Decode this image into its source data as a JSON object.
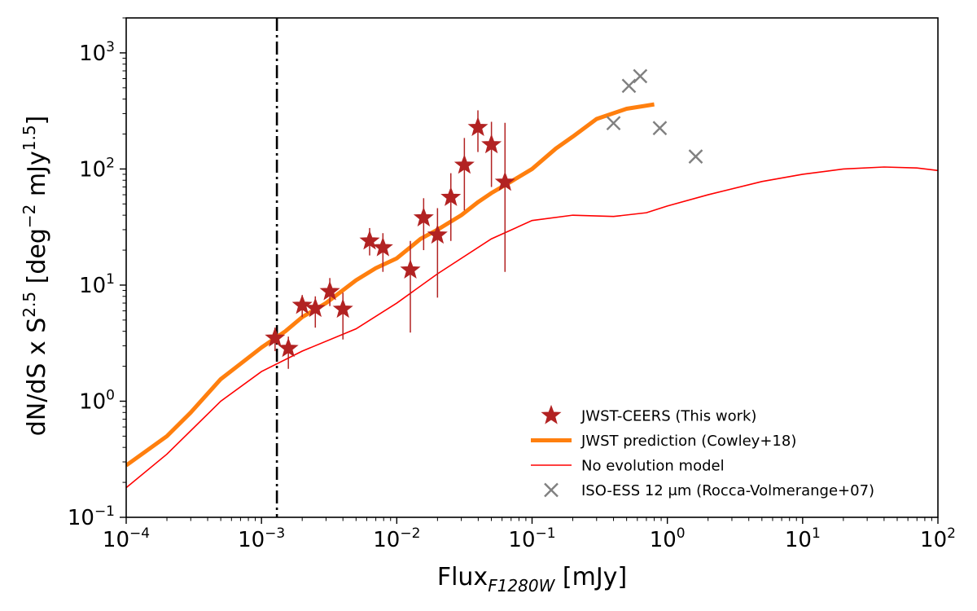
{
  "chart_data": {
    "type": "scatter",
    "xscale": "log",
    "yscale": "log",
    "xlim": [
      0.0001,
      100
    ],
    "ylim": [
      0.1,
      2000
    ],
    "xlabel": "Flux",
    "xlabel_sub": "F1280W",
    "xlabel_unit": "[mJy]",
    "ylabel": "dN/dS x S",
    "ylabel_sup": "2.5",
    "ylabel_unit_pre": "[deg",
    "ylabel_unit_sup1": "−2",
    "ylabel_unit_mid": " mJy",
    "ylabel_unit_sup2": "1.5",
    "ylabel_unit_post": "]",
    "x_ticks": [
      {
        "value": 0.0001,
        "base": "10",
        "exp": "−4"
      },
      {
        "value": 0.001,
        "base": "10",
        "exp": "−3"
      },
      {
        "value": 0.01,
        "base": "10",
        "exp": "−2"
      },
      {
        "value": 0.1,
        "base": "10",
        "exp": "−1"
      },
      {
        "value": 1,
        "base": "10",
        "exp": "0"
      },
      {
        "value": 10,
        "base": "10",
        "exp": "1"
      },
      {
        "value": 100,
        "base": "10",
        "exp": "2"
      }
    ],
    "y_ticks": [
      {
        "value": 0.1,
        "base": "10",
        "exp": "−1"
      },
      {
        "value": 1,
        "base": "10",
        "exp": "0"
      },
      {
        "value": 10,
        "base": "10",
        "exp": "1"
      },
      {
        "value": 100,
        "base": "10",
        "exp": "2"
      },
      {
        "value": 1000,
        "base": "10",
        "exp": "3"
      }
    ],
    "vline": {
      "x": 0.0013,
      "style": "dash-dot",
      "color": "#000000"
    },
    "legend_position": "lower-right",
    "grid": false,
    "series": [
      {
        "name": "JWST-CEERS (This work)",
        "kind": "errorbar-stars",
        "color": "#b22222",
        "points": [
          {
            "x": 0.00126,
            "y": 3.5,
            "ylo": 2.7,
            "yhi": 4.3
          },
          {
            "x": 0.00158,
            "y": 2.85,
            "ylo": 1.9,
            "yhi": 3.6
          },
          {
            "x": 0.002,
            "y": 6.7,
            "ylo": 5.3,
            "yhi": 8.2
          },
          {
            "x": 0.0025,
            "y": 6.3,
            "ylo": 4.3,
            "yhi": 8.0
          },
          {
            "x": 0.0032,
            "y": 8.8,
            "ylo": 6.6,
            "yhi": 11.5
          },
          {
            "x": 0.004,
            "y": 6.2,
            "ylo": 3.4,
            "yhi": 8.6
          },
          {
            "x": 0.0063,
            "y": 24,
            "ylo": 18,
            "yhi": 31
          },
          {
            "x": 0.0079,
            "y": 21,
            "ylo": 13,
            "yhi": 28
          },
          {
            "x": 0.0126,
            "y": 13.5,
            "ylo": 3.9,
            "yhi": 24
          },
          {
            "x": 0.0158,
            "y": 38,
            "ylo": 20,
            "yhi": 56
          },
          {
            "x": 0.02,
            "y": 27,
            "ylo": 7.8,
            "yhi": 46
          },
          {
            "x": 0.0251,
            "y": 57,
            "ylo": 24,
            "yhi": 92
          },
          {
            "x": 0.0316,
            "y": 108,
            "ylo": 44,
            "yhi": 185
          },
          {
            "x": 0.0398,
            "y": 228,
            "ylo": 140,
            "yhi": 320
          },
          {
            "x": 0.0501,
            "y": 162,
            "ylo": 70,
            "yhi": 255
          },
          {
            "x": 0.0631,
            "y": 77,
            "ylo": 13,
            "yhi": 250
          }
        ]
      },
      {
        "name": "JWST prediction (Cowley+18)",
        "kind": "line",
        "color": "#ff7f0e",
        "points": [
          [
            0.0001,
            0.28
          ],
          [
            0.0002,
            0.5
          ],
          [
            0.0003,
            0.8
          ],
          [
            0.0005,
            1.55
          ],
          [
            0.0007,
            2.1
          ],
          [
            0.001,
            2.9
          ],
          [
            0.0015,
            4.0
          ],
          [
            0.002,
            5.3
          ],
          [
            0.003,
            7.0
          ],
          [
            0.005,
            11.0
          ],
          [
            0.007,
            14.0
          ],
          [
            0.01,
            17.0
          ],
          [
            0.015,
            25.0
          ],
          [
            0.02,
            30.0
          ],
          [
            0.03,
            40.0
          ],
          [
            0.04,
            52.0
          ],
          [
            0.05,
            62.0
          ],
          [
            0.07,
            78.0
          ],
          [
            0.1,
            100.0
          ],
          [
            0.15,
            150.0
          ],
          [
            0.2,
            190.0
          ],
          [
            0.3,
            270.0
          ],
          [
            0.5,
            330.0
          ],
          [
            0.8,
            360.0
          ]
        ]
      },
      {
        "name": "No evolution model",
        "kind": "line",
        "color": "#ff0000",
        "points": [
          [
            0.0001,
            0.18
          ],
          [
            0.0002,
            0.35
          ],
          [
            0.0005,
            1.0
          ],
          [
            0.001,
            1.8
          ],
          [
            0.002,
            2.7
          ],
          [
            0.005,
            4.2
          ],
          [
            0.01,
            7.0
          ],
          [
            0.02,
            12.5
          ],
          [
            0.05,
            25.0
          ],
          [
            0.1,
            36.0
          ],
          [
            0.2,
            40.0
          ],
          [
            0.4,
            39.0
          ],
          [
            0.7,
            42.0
          ],
          [
            1,
            48.0
          ],
          [
            2,
            60.0
          ],
          [
            5,
            78.0
          ],
          [
            10,
            90.0
          ],
          [
            20,
            100.0
          ],
          [
            40,
            104.0
          ],
          [
            70,
            102.0
          ],
          [
            100,
            97.0
          ]
        ]
      },
      {
        "name": "ISO-ESS 12 μm (Rocca-Volmerange+07)",
        "kind": "x-markers",
        "color": "#808080",
        "points": [
          [
            0.4,
            248
          ],
          [
            0.52,
            520
          ],
          [
            0.63,
            630
          ],
          [
            0.88,
            225
          ],
          [
            1.62,
            128
          ]
        ]
      }
    ]
  }
}
